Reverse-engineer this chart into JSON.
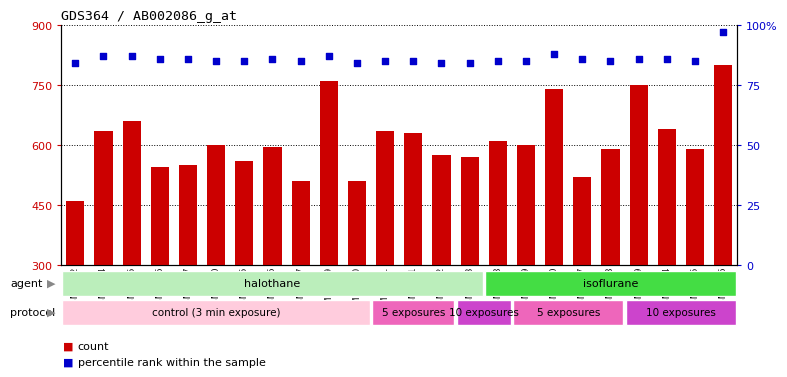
{
  "title": "GDS364 / AB002086_g_at",
  "samples": [
    "GSM5082",
    "GSM5084",
    "GSM5085",
    "GSM5086",
    "GSM5087",
    "GSM5090",
    "GSM5105",
    "GSM5106",
    "GSM5107",
    "GSM11379",
    "GSM11380",
    "GSM11381",
    "GSM5111",
    "GSM5112",
    "GSM5113",
    "GSM5108",
    "GSM5109",
    "GSM5110",
    "GSM5117",
    "GSM5118",
    "GSM5119",
    "GSM5114",
    "GSM5115",
    "GSM5116"
  ],
  "counts": [
    460,
    635,
    660,
    545,
    550,
    600,
    560,
    595,
    510,
    760,
    510,
    635,
    630,
    575,
    570,
    610,
    600,
    740,
    520,
    590,
    750,
    640,
    590,
    800
  ],
  "percentiles": [
    84,
    87,
    87,
    86,
    86,
    85,
    85,
    86,
    85,
    87,
    84,
    85,
    85,
    84,
    84,
    85,
    85,
    88,
    86,
    85,
    86,
    86,
    85,
    97
  ],
  "ylim_left": [
    300,
    900
  ],
  "ylim_right": [
    0,
    100
  ],
  "yticks_left": [
    300,
    450,
    600,
    750,
    900
  ],
  "yticks_right": [
    0,
    25,
    50,
    75,
    100
  ],
  "bar_color": "#CC0000",
  "dot_color": "#0000CC",
  "agent_labels": [
    {
      "label": "halothane",
      "start": 0,
      "end": 15,
      "color": "#bbeebb"
    },
    {
      "label": "isoflurane",
      "start": 15,
      "end": 24,
      "color": "#44dd44"
    }
  ],
  "protocol_labels": [
    {
      "label": "control (3 min exposure)",
      "start": 0,
      "end": 11,
      "color": "#ffccdd"
    },
    {
      "label": "5 exposures",
      "start": 11,
      "end": 14,
      "color": "#ee66bb"
    },
    {
      "label": "10 exposures",
      "start": 14,
      "end": 16,
      "color": "#cc44cc"
    },
    {
      "label": "5 exposures",
      "start": 16,
      "end": 20,
      "color": "#ee66bb"
    },
    {
      "label": "10 exposures",
      "start": 20,
      "end": 24,
      "color": "#cc44cc"
    }
  ],
  "legend_count_color": "#CC0000",
  "legend_percentile_color": "#0000CC",
  "legend_count_label": "count",
  "legend_percentile_label": "percentile rank within the sample",
  "agent_row_label": "agent",
  "protocol_row_label": "protocol"
}
